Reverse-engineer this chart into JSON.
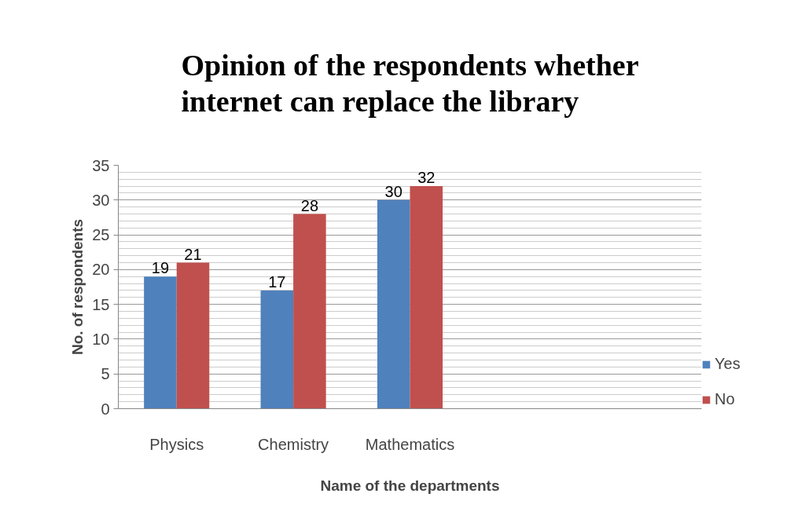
{
  "chart_data": {
    "type": "bar",
    "title": "Opinion of the respondents whether internet can replace the library",
    "xlabel": "Name of the departments",
    "ylabel": "No. of respondents",
    "categories": [
      "Physics",
      "Chemistry",
      "Mathematics",
      null,
      null
    ],
    "series": [
      {
        "name": "Yes",
        "color": "#4f81bd",
        "values": [
          19,
          17,
          30,
          null,
          null
        ]
      },
      {
        "name": "No",
        "color": "#c0504d",
        "values": [
          21,
          28,
          32,
          null,
          null
        ]
      }
    ],
    "ylim": [
      0,
      35
    ],
    "yticks": [
      0,
      {
        "value": 1,
        "label": null
      },
      {
        "value": 2,
        "label": null
      },
      {
        "value": 3,
        "label": null
      },
      {
        "value": 4,
        "label": null
      },
      5,
      {
        "value": 6,
        "label": null
      },
      {
        "value": 7,
        "label": null
      },
      {
        "value": 8,
        "label": null
      },
      {
        "value": 9,
        "label": null
      },
      10,
      {
        "value": 11,
        "label": null
      },
      {
        "value": 12,
        "label": null
      },
      {
        "value": 13,
        "label": null
      },
      {
        "value": 14,
        "label": null
      },
      15,
      {
        "value": 16,
        "label": null
      },
      {
        "value": 17,
        "label": null
      },
      {
        "value": 18,
        "label": null
      },
      {
        "value": 19,
        "label": null
      },
      20,
      {
        "value": 21,
        "label": null
      },
      {
        "value": 22,
        "label": null
      },
      {
        "value": 23,
        "label": null
      },
      {
        "value": 24,
        "label": null
      },
      25,
      {
        "value": 26,
        "label": null
      },
      {
        "value": 27,
        "label": null
      },
      {
        "value": 28,
        "label": null
      },
      {
        "value": 29,
        "label": null
      },
      30,
      {
        "value": 31,
        "label": null
      },
      {
        "value": 32,
        "label": null
      },
      {
        "value": 33,
        "label": null
      },
      {
        "value": 34,
        "label": null
      },
      35
    ],
    "grid": "y",
    "legend": "right",
    "data_labels": true
  }
}
